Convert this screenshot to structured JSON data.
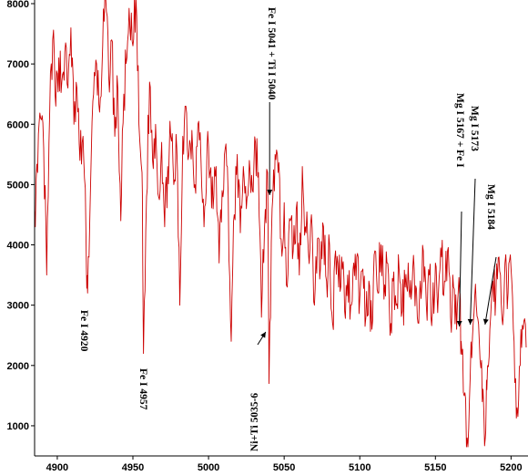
{
  "chart_data": {
    "type": "line",
    "title": "",
    "xlabel": "",
    "ylabel": "",
    "xlim": [
      4885,
      5210
    ],
    "ylim": [
      500,
      8000
    ],
    "x_ticks": [
      4900,
      4950,
      5000,
      5050,
      5100,
      5150,
      5200
    ],
    "y_ticks": [
      1000,
      2000,
      3000,
      4000,
      5000,
      6000,
      7000,
      8000
    ],
    "grid": false,
    "legend": "none",
    "series": [
      {
        "color": "#cc0000",
        "anchors": [
          [
            4885,
            4600
          ],
          [
            4887,
            5200
          ],
          [
            4889,
            6100
          ],
          [
            4891,
            5600
          ],
          [
            4893,
            3500
          ],
          [
            4895,
            6200
          ],
          [
            4897,
            7400
          ],
          [
            4899,
            6300
          ],
          [
            4901,
            7100
          ],
          [
            4903,
            6700
          ],
          [
            4905,
            7200
          ],
          [
            4907,
            6600
          ],
          [
            4909,
            7600
          ],
          [
            4911,
            6000
          ],
          [
            4913,
            6600
          ],
          [
            4915,
            5400
          ],
          [
            4917,
            5800
          ],
          [
            4919,
            4100
          ],
          [
            4920,
            3200
          ],
          [
            4922,
            5000
          ],
          [
            4924,
            6500
          ],
          [
            4926,
            7000
          ],
          [
            4928,
            6200
          ],
          [
            4930,
            7300
          ],
          [
            4932,
            8100
          ],
          [
            4934,
            6800
          ],
          [
            4936,
            7400
          ],
          [
            4938,
            5800
          ],
          [
            4940,
            6600
          ],
          [
            4942,
            4400
          ],
          [
            4944,
            6500
          ],
          [
            4946,
            7100
          ],
          [
            4948,
            7600
          ],
          [
            4950,
            7300
          ],
          [
            4952,
            8100
          ],
          [
            4954,
            6000
          ],
          [
            4956,
            5200
          ],
          [
            4957,
            2200
          ],
          [
            4959,
            4800
          ],
          [
            4961,
            6700
          ],
          [
            4963,
            5400
          ],
          [
            4965,
            6000
          ],
          [
            4967,
            4800
          ],
          [
            4969,
            5700
          ],
          [
            4971,
            4300
          ],
          [
            4973,
            5300
          ],
          [
            4975,
            5800
          ],
          [
            4977,
            5000
          ],
          [
            4979,
            5600
          ],
          [
            4981,
            3000
          ],
          [
            4983,
            5800
          ],
          [
            4985,
            6300
          ],
          [
            4987,
            5500
          ],
          [
            4989,
            5900
          ],
          [
            4991,
            5000
          ],
          [
            4993,
            6000
          ],
          [
            4995,
            5400
          ],
          [
            4997,
            4300
          ],
          [
            4999,
            5600
          ],
          [
            5001,
            5200
          ],
          [
            5003,
            4600
          ],
          [
            5005,
            5300
          ],
          [
            5007,
            3700
          ],
          [
            5009,
            4900
          ],
          [
            5011,
            5600
          ],
          [
            5013,
            4800
          ],
          [
            5015,
            2400
          ],
          [
            5017,
            4500
          ],
          [
            5019,
            5500
          ],
          [
            5021,
            4200
          ],
          [
            5023,
            5300
          ],
          [
            5025,
            4600
          ],
          [
            5027,
            5400
          ],
          [
            5029,
            4900
          ],
          [
            5031,
            5700
          ],
          [
            5033,
            5200
          ],
          [
            5035,
            2800
          ],
          [
            5037,
            4300
          ],
          [
            5039,
            5200
          ],
          [
            5040,
            1700
          ],
          [
            5042,
            4600
          ],
          [
            5044,
            5500
          ],
          [
            5046,
            5200
          ],
          [
            5048,
            4100
          ],
          [
            5050,
            4700
          ],
          [
            5052,
            3300
          ],
          [
            5054,
            4400
          ],
          [
            5056,
            3900
          ],
          [
            5058,
            4600
          ],
          [
            5060,
            3500
          ],
          [
            5062,
            5300
          ],
          [
            5064,
            4300
          ],
          [
            5066,
            3900
          ],
          [
            5068,
            4500
          ],
          [
            5070,
            3000
          ],
          [
            5072,
            4100
          ],
          [
            5074,
            3600
          ],
          [
            5076,
            4300
          ],
          [
            5078,
            3400
          ],
          [
            5080,
            4000
          ],
          [
            5082,
            2700
          ],
          [
            5084,
            3900
          ],
          [
            5086,
            3300
          ],
          [
            5088,
            3800
          ],
          [
            5090,
            2900
          ],
          [
            5092,
            3500
          ],
          [
            5094,
            3000
          ],
          [
            5096,
            3700
          ],
          [
            5098,
            3800
          ],
          [
            5100,
            3100
          ],
          [
            5102,
            3600
          ],
          [
            5104,
            2800
          ],
          [
            5106,
            3400
          ],
          [
            5108,
            2600
          ],
          [
            5110,
            3900
          ],
          [
            5112,
            3200
          ],
          [
            5114,
            4000
          ],
          [
            5116,
            3100
          ],
          [
            5118,
            3700
          ],
          [
            5120,
            2500
          ],
          [
            5122,
            3400
          ],
          [
            5124,
            3000
          ],
          [
            5126,
            3600
          ],
          [
            5128,
            2900
          ],
          [
            5130,
            3300
          ],
          [
            5132,
            3700
          ],
          [
            5134,
            3100
          ],
          [
            5136,
            3600
          ],
          [
            5138,
            2800
          ],
          [
            5140,
            3400
          ],
          [
            5142,
            3900
          ],
          [
            5144,
            3000
          ],
          [
            5146,
            3500
          ],
          [
            5148,
            2900
          ],
          [
            5150,
            3700
          ],
          [
            5152,
            3200
          ],
          [
            5154,
            3800
          ],
          [
            5156,
            3400
          ],
          [
            5158,
            3900
          ],
          [
            5160,
            2800
          ],
          [
            5162,
            3300
          ],
          [
            5164,
            2600
          ],
          [
            5166,
            3200
          ],
          [
            5167,
            2400
          ],
          [
            5169,
            1500
          ],
          [
            5171,
            800
          ],
          [
            5173,
            1800
          ],
          [
            5175,
            2700
          ],
          [
            5177,
            3000
          ],
          [
            5179,
            2400
          ],
          [
            5181,
            1400
          ],
          [
            5183,
            800
          ],
          [
            5184,
            1600
          ],
          [
            5186,
            2600
          ],
          [
            5188,
            3400
          ],
          [
            5190,
            3200
          ],
          [
            5192,
            3800
          ],
          [
            5194,
            2800
          ],
          [
            5196,
            3700
          ],
          [
            5198,
            3200
          ],
          [
            5200,
            3600
          ],
          [
            5202,
            2400
          ],
          [
            5204,
            1300
          ],
          [
            5206,
            2000
          ],
          [
            5208,
            2600
          ],
          [
            5210,
            2300
          ]
        ]
      }
    ],
    "annotations": [
      {
        "text": "Fe I  4920",
        "x": 4920
      },
      {
        "text": "Fe I  4957",
        "x": 4957
      },
      {
        "text": "Fe I  5041 + Ti I 5040",
        "x": 5041
      },
      {
        "text": "Ni+Ti  5035-6",
        "x": 5036
      },
      {
        "text": "Mg I  5167 + Fe I",
        "x": 5167
      },
      {
        "text": "Mg I  5173",
        "x": 5173
      },
      {
        "text": "Mg I  5184",
        "x": 5184
      }
    ]
  }
}
